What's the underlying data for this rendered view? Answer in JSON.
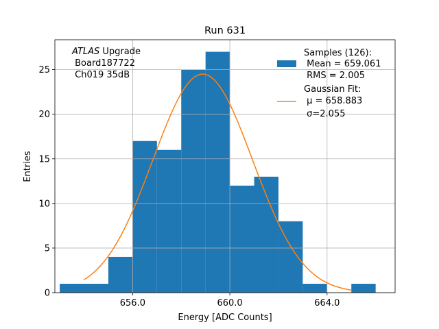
{
  "chart_data": {
    "type": "bar",
    "title": "Run 631",
    "xlabel": "Energy [ADC Counts]",
    "ylabel": "Entries",
    "xlim": [
      652.8,
      666.8
    ],
    "ylim": [
      0,
      28.35
    ],
    "xticks": [
      656,
      660,
      664
    ],
    "xtick_labels": [
      "656.0",
      "660.0",
      "664.0"
    ],
    "yticks": [
      0,
      5,
      10,
      15,
      20,
      25
    ],
    "ytick_labels": [
      "0",
      "5",
      "10",
      "15",
      "20",
      "25"
    ],
    "grid": true,
    "bin_edges": [
      653,
      654,
      655,
      656,
      657,
      658,
      659,
      660,
      661,
      662,
      663,
      664,
      665,
      666
    ],
    "counts": [
      1,
      1,
      4,
      17,
      16,
      25,
      27,
      12,
      13,
      8,
      1,
      0,
      1
    ],
    "bar_color": "#1f77b4",
    "fit": {
      "mu": 658.883,
      "sigma": 2.055,
      "amplitude": 24.5,
      "x_range": [
        654,
        665
      ],
      "color": "#ff7f0e"
    },
    "annotation": {
      "italic": "ATLAS",
      "line1_rest": " Upgrade",
      "line2": " Board187722",
      "line3": " Ch019 35dB"
    },
    "legend": {
      "position": "top-right",
      "samples_lines": [
        "Samples (126):",
        " Mean = 659.061",
        " RMS = 2.005"
      ],
      "fit_lines": [
        "Gaussian Fit:",
        " μ = 658.883",
        " σ=2.055"
      ]
    }
  }
}
